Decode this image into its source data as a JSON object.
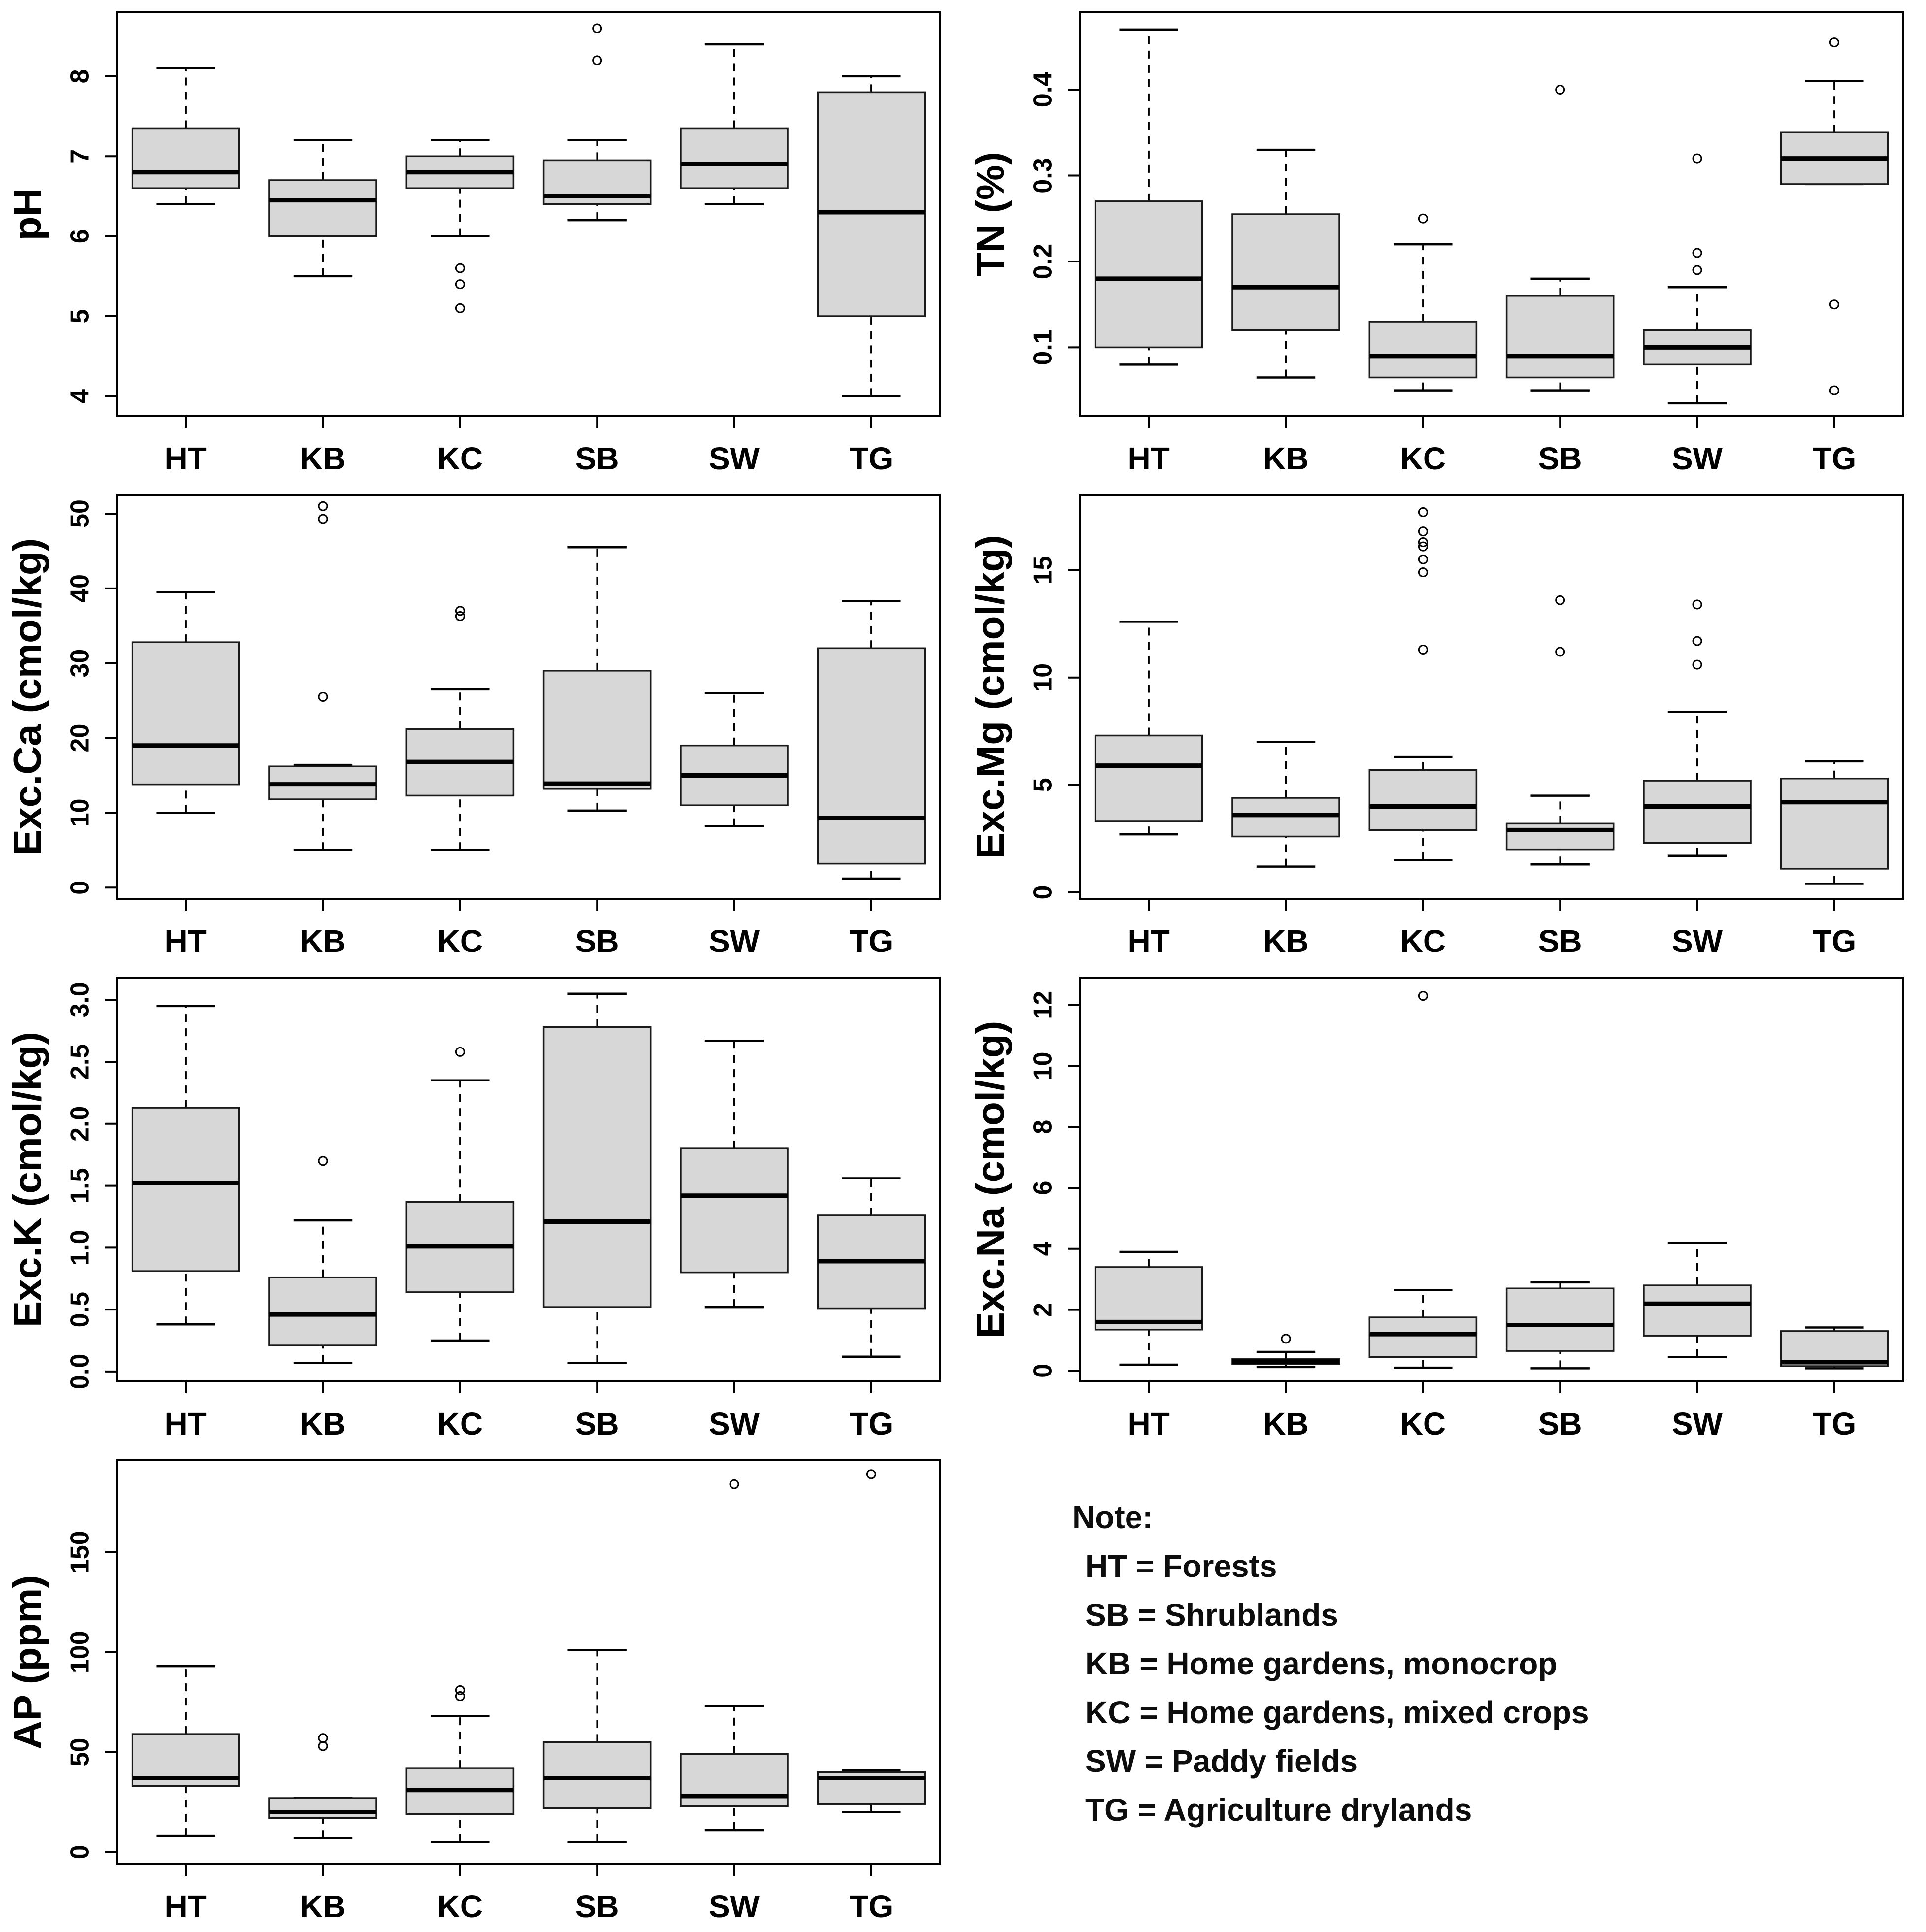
{
  "style": {
    "background": "#ffffff",
    "box_fill": "#d7d7d7",
    "line_color": "#000000",
    "text_color": "#000000"
  },
  "note": {
    "title": "Note:",
    "lines": [
      "HT = Forests",
      "SB = Shrublands",
      "KB = Home gardens, monocrop",
      "KC = Home gardens, mixed crops",
      "SW = Paddy fields",
      "TG = Agriculture drylands"
    ]
  },
  "chart_data": [
    {
      "type": "boxplot",
      "ylabel": "pH",
      "categories": [
        "HT",
        "KB",
        "KC",
        "SB",
        "SW",
        "TG"
      ],
      "yticks": [
        "4",
        "5",
        "6",
        "7",
        "8"
      ],
      "ytick_values": [
        4,
        5,
        6,
        7,
        8
      ],
      "ylim": [
        3.75,
        8.8
      ],
      "grid": false,
      "boxes": [
        {
          "category": "HT",
          "low": 6.4,
          "q1": 6.6,
          "median": 6.8,
          "q3": 7.35,
          "high": 8.1,
          "outliers": []
        },
        {
          "category": "KB",
          "low": 5.5,
          "q1": 6.0,
          "median": 6.45,
          "q3": 6.7,
          "high": 7.2,
          "outliers": []
        },
        {
          "category": "KC",
          "low": 6.0,
          "q1": 6.6,
          "median": 6.8,
          "q3": 7.0,
          "high": 7.2,
          "outliers": [
            5.6,
            5.4,
            5.1
          ]
        },
        {
          "category": "SB",
          "low": 6.2,
          "q1": 6.4,
          "median": 6.5,
          "q3": 6.95,
          "high": 7.2,
          "outliers": [
            8.6,
            8.2
          ]
        },
        {
          "category": "SW",
          "low": 6.4,
          "q1": 6.6,
          "median": 6.9,
          "q3": 7.35,
          "high": 8.4,
          "outliers": []
        },
        {
          "category": "TG",
          "low": 4.0,
          "q1": 5.0,
          "median": 6.3,
          "q3": 7.8,
          "high": 8.0,
          "outliers": []
        }
      ]
    },
    {
      "type": "boxplot",
      "ylabel": "TN (%)",
      "categories": [
        "HT",
        "KB",
        "KC",
        "SB",
        "SW",
        "TG"
      ],
      "yticks": [
        "0.1",
        "0.2",
        "0.3",
        "0.4"
      ],
      "ytick_values": [
        0.1,
        0.2,
        0.3,
        0.4
      ],
      "ylim": [
        0.02,
        0.49
      ],
      "grid": false,
      "boxes": [
        {
          "category": "HT",
          "low": 0.08,
          "q1": 0.1,
          "median": 0.18,
          "q3": 0.27,
          "high": 0.47,
          "outliers": []
        },
        {
          "category": "KB",
          "low": 0.065,
          "q1": 0.12,
          "median": 0.17,
          "q3": 0.255,
          "high": 0.33,
          "outliers": []
        },
        {
          "category": "KC",
          "low": 0.05,
          "q1": 0.065,
          "median": 0.09,
          "q3": 0.13,
          "high": 0.22,
          "outliers": [
            0.25
          ]
        },
        {
          "category": "SB",
          "low": 0.05,
          "q1": 0.065,
          "median": 0.09,
          "q3": 0.16,
          "high": 0.18,
          "outliers": [
            0.4
          ]
        },
        {
          "category": "SW",
          "low": 0.035,
          "q1": 0.08,
          "median": 0.1,
          "q3": 0.12,
          "high": 0.17,
          "outliers": [
            0.32,
            0.21,
            0.19
          ]
        },
        {
          "category": "TG",
          "low": 0.29,
          "q1": 0.29,
          "median": 0.32,
          "q3": 0.35,
          "high": 0.41,
          "outliers": [
            0.455,
            0.15,
            0.05
          ]
        }
      ]
    },
    {
      "type": "boxplot",
      "ylabel": "Exc.Ca (cmol/kg)",
      "categories": [
        "HT",
        "KB",
        "KC",
        "SB",
        "SW",
        "TG"
      ],
      "yticks": [
        "0",
        "10",
        "20",
        "30",
        "40",
        "50"
      ],
      "ytick_values": [
        0,
        10,
        20,
        30,
        40,
        50
      ],
      "ylim": [
        -1.5,
        52.5
      ],
      "grid": false,
      "boxes": [
        {
          "category": "HT",
          "low": 10,
          "q1": 13.8,
          "median": 19,
          "q3": 32.8,
          "high": 39.5,
          "outliers": []
        },
        {
          "category": "KB",
          "low": 5,
          "q1": 11.8,
          "median": 13.8,
          "q3": 16.2,
          "high": 16.4,
          "outliers": [
            51,
            49.3,
            25.5
          ]
        },
        {
          "category": "KC",
          "low": 5,
          "q1": 12.3,
          "median": 16.8,
          "q3": 21.2,
          "high": 26.5,
          "outliers": [
            37,
            36.3
          ]
        },
        {
          "category": "SB",
          "low": 10.3,
          "q1": 13.2,
          "median": 13.9,
          "q3": 29,
          "high": 45.5,
          "outliers": []
        },
        {
          "category": "SW",
          "low": 8.2,
          "q1": 11,
          "median": 15,
          "q3": 19,
          "high": 26,
          "outliers": []
        },
        {
          "category": "TG",
          "low": 1.2,
          "q1": 3.2,
          "median": 9.3,
          "q3": 32,
          "high": 38.3,
          "outliers": []
        }
      ]
    },
    {
      "type": "boxplot",
      "ylabel": "Exc.Mg (cmol/kg)",
      "categories": [
        "HT",
        "KB",
        "KC",
        "SB",
        "SW",
        "TG"
      ],
      "yticks": [
        "0",
        "5",
        "10",
        "15"
      ],
      "ytick_values": [
        0,
        5,
        10,
        15
      ],
      "ylim": [
        -0.3,
        18.5
      ],
      "grid": false,
      "boxes": [
        {
          "category": "HT",
          "low": 2.7,
          "q1": 3.3,
          "median": 5.9,
          "q3": 7.3,
          "high": 12.6,
          "outliers": []
        },
        {
          "category": "KB",
          "low": 1.2,
          "q1": 2.6,
          "median": 3.6,
          "q3": 4.4,
          "high": 7.0,
          "outliers": []
        },
        {
          "category": "KC",
          "low": 1.5,
          "q1": 2.9,
          "median": 4.0,
          "q3": 5.7,
          "high": 6.3,
          "outliers": [
            17.7,
            16.8,
            16.3,
            16.1,
            15.5,
            14.9,
            11.3
          ]
        },
        {
          "category": "SB",
          "low": 1.3,
          "q1": 2.0,
          "median": 2.9,
          "q3": 3.2,
          "high": 4.5,
          "outliers": [
            13.6,
            11.2
          ]
        },
        {
          "category": "SW",
          "low": 1.7,
          "q1": 2.3,
          "median": 4.0,
          "q3": 5.2,
          "high": 8.4,
          "outliers": [
            13.4,
            11.7,
            10.6
          ]
        },
        {
          "category": "TG",
          "low": 0.4,
          "q1": 1.1,
          "median": 4.2,
          "q3": 5.3,
          "high": 6.1,
          "outliers": []
        }
      ]
    },
    {
      "type": "boxplot",
      "ylabel": "Exc.K (cmol/kg)",
      "categories": [
        "HT",
        "KB",
        "KC",
        "SB",
        "SW",
        "TG"
      ],
      "yticks": [
        "0.0",
        "0.5",
        "1.0",
        "1.5",
        "2.0",
        "2.5",
        "3.0"
      ],
      "ytick_values": [
        0.0,
        0.5,
        1.0,
        1.5,
        2.0,
        2.5,
        3.0
      ],
      "ylim": [
        -0.08,
        3.18
      ],
      "grid": false,
      "boxes": [
        {
          "category": "HT",
          "low": 0.38,
          "q1": 0.81,
          "median": 1.52,
          "q3": 2.13,
          "high": 2.95,
          "outliers": []
        },
        {
          "category": "KB",
          "low": 0.07,
          "q1": 0.21,
          "median": 0.46,
          "q3": 0.76,
          "high": 1.22,
          "outliers": [
            1.7
          ]
        },
        {
          "category": "KC",
          "low": 0.25,
          "q1": 0.64,
          "median": 1.01,
          "q3": 1.37,
          "high": 2.35,
          "outliers": [
            2.58
          ]
        },
        {
          "category": "SB",
          "low": 0.07,
          "q1": 0.52,
          "median": 1.21,
          "q3": 2.78,
          "high": 3.05,
          "outliers": []
        },
        {
          "category": "SW",
          "low": 0.52,
          "q1": 0.8,
          "median": 1.42,
          "q3": 1.8,
          "high": 2.67,
          "outliers": []
        },
        {
          "category": "TG",
          "low": 0.12,
          "q1": 0.51,
          "median": 0.89,
          "q3": 1.26,
          "high": 1.56,
          "outliers": []
        }
      ]
    },
    {
      "type": "boxplot",
      "ylabel": "Exc.Na (cmol/kg)",
      "categories": [
        "HT",
        "KB",
        "KC",
        "SB",
        "SW",
        "TG"
      ],
      "yticks": [
        "0",
        "2",
        "4",
        "6",
        "8",
        "10",
        "12"
      ],
      "ytick_values": [
        0,
        2,
        4,
        6,
        8,
        10,
        12
      ],
      "ylim": [
        -0.35,
        12.9
      ],
      "grid": false,
      "boxes": [
        {
          "category": "HT",
          "low": 0.2,
          "q1": 1.35,
          "median": 1.6,
          "q3": 3.4,
          "high": 3.9,
          "outliers": []
        },
        {
          "category": "KB",
          "low": 0.12,
          "q1": 0.22,
          "median": 0.3,
          "q3": 0.38,
          "high": 0.62,
          "outliers": [
            1.05
          ]
        },
        {
          "category": "KC",
          "low": 0.1,
          "q1": 0.45,
          "median": 1.2,
          "q3": 1.75,
          "high": 2.65,
          "outliers": [
            12.3
          ]
        },
        {
          "category": "SB",
          "low": 0.08,
          "q1": 0.65,
          "median": 1.5,
          "q3": 2.7,
          "high": 2.9,
          "outliers": []
        },
        {
          "category": "SW",
          "low": 0.45,
          "q1": 1.15,
          "median": 2.2,
          "q3": 2.8,
          "high": 4.2,
          "outliers": []
        },
        {
          "category": "TG",
          "low": 0.08,
          "q1": 0.15,
          "median": 0.28,
          "q3": 1.3,
          "high": 1.42,
          "outliers": []
        }
      ]
    },
    {
      "type": "boxplot",
      "ylabel": "AP (ppm)",
      "categories": [
        "HT",
        "KB",
        "KC",
        "SB",
        "SW",
        "TG"
      ],
      "yticks": [
        "0",
        "50",
        "100",
        "150"
      ],
      "ytick_values": [
        0,
        50,
        100,
        150
      ],
      "ylim": [
        -6,
        196
      ],
      "grid": false,
      "boxes": [
        {
          "category": "HT",
          "low": 8,
          "q1": 33,
          "median": 37,
          "q3": 59,
          "high": 93,
          "outliers": []
        },
        {
          "category": "KB",
          "low": 7,
          "q1": 17,
          "median": 20,
          "q3": 27,
          "high": 27,
          "outliers": [
            57,
            53
          ]
        },
        {
          "category": "KC",
          "low": 5,
          "q1": 19,
          "median": 31,
          "q3": 42,
          "high": 68,
          "outliers": [
            81,
            78
          ]
        },
        {
          "category": "SB",
          "low": 5,
          "q1": 22,
          "median": 37,
          "q3": 55,
          "high": 101,
          "outliers": []
        },
        {
          "category": "SW",
          "low": 11,
          "q1": 23,
          "median": 28,
          "q3": 49,
          "high": 73,
          "outliers": [
            184
          ]
        },
        {
          "category": "TG",
          "low": 20,
          "q1": 24,
          "median": 37,
          "q3": 40,
          "high": 41,
          "outliers": [
            189
          ]
        }
      ]
    }
  ]
}
